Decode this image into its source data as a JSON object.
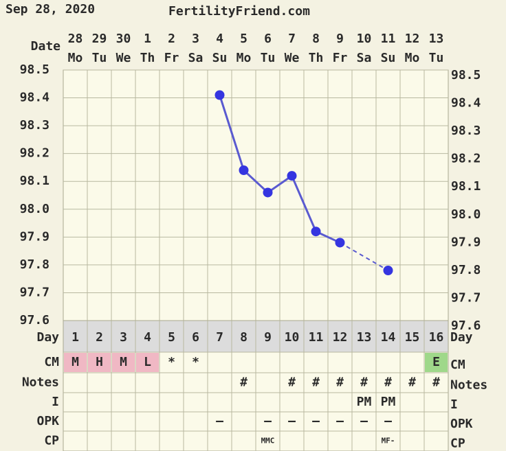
{
  "header": {
    "date": "Sep 28, 2020",
    "site": "FertilityFriend.com"
  },
  "chart_data": {
    "type": "line",
    "x_label": "Date",
    "categories": [
      "28",
      "29",
      "30",
      "1",
      "2",
      "3",
      "4",
      "5",
      "6",
      "7",
      "8",
      "9",
      "10",
      "11",
      "12",
      "13"
    ],
    "weekdays": [
      "Mo",
      "Tu",
      "We",
      "Th",
      "Fr",
      "Sa",
      "Su",
      "Mo",
      "Tu",
      "We",
      "Th",
      "Fr",
      "Sa",
      "Su",
      "Mo",
      "Tu"
    ],
    "values": [
      null,
      null,
      null,
      null,
      null,
      null,
      98.41,
      98.14,
      98.06,
      98.12,
      97.92,
      97.88,
      null,
      97.78,
      null,
      null
    ],
    "color": "#5a5ad0",
    "point_color": "#3535e0",
    "ylim": [
      97.6,
      98.5
    ],
    "yticks": [
      97.6,
      97.7,
      97.8,
      97.9,
      {
        "value": 98,
        "label": "98.0"
      },
      98.1,
      98.2,
      98.3,
      98.4,
      98.5
    ],
    "grid": true
  },
  "table": {
    "row_labels": [
      "Day",
      "CM",
      "Notes",
      "I",
      "OPK",
      "CP"
    ],
    "rows": [
      [
        1,
        2,
        3,
        4,
        5,
        6,
        7,
        8,
        9,
        10,
        11,
        12,
        13,
        14,
        15,
        16
      ],
      [
        "M",
        "H",
        "M",
        "L",
        "*",
        "*",
        null,
        null,
        null,
        null,
        null,
        null,
        null,
        null,
        null,
        "E"
      ],
      [
        null,
        null,
        null,
        null,
        null,
        null,
        null,
        "#",
        null,
        "#",
        "#",
        "#",
        "#",
        "#",
        "#",
        "#"
      ],
      [
        null,
        null,
        null,
        null,
        null,
        null,
        null,
        null,
        null,
        null,
        null,
        null,
        "PM",
        "PM",
        null,
        null
      ],
      [
        null,
        null,
        null,
        null,
        null,
        null,
        "–",
        null,
        "–",
        "–",
        "–",
        "–",
        "–",
        "–",
        null,
        null
      ],
      [
        null,
        null,
        null,
        null,
        null,
        null,
        null,
        null,
        "MMC",
        null,
        null,
        null,
        null,
        "MF-",
        null,
        null
      ]
    ],
    "cm_colors": [
      "#f0b8c4",
      "#f0b8c4",
      "#f0b8c4",
      "#f0b8c4",
      null,
      null,
      null,
      null,
      null,
      null,
      null,
      null,
      null,
      null,
      null,
      "#9fd88a"
    ]
  }
}
